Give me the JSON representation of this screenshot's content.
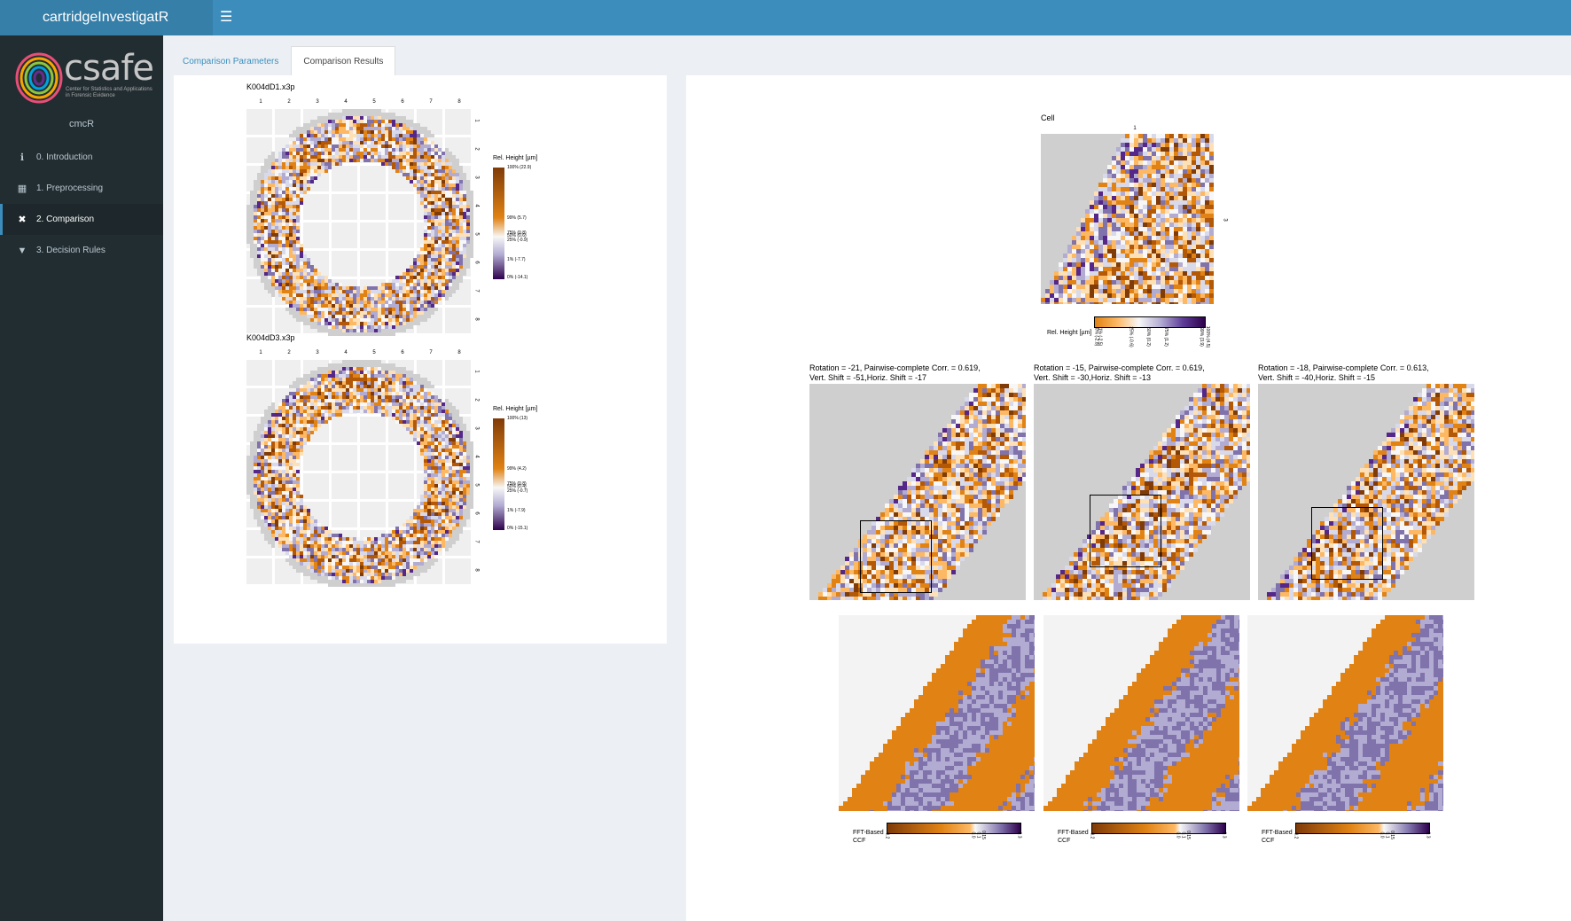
{
  "app": {
    "title": "cartridgeInvestigatR"
  },
  "topbar": {
    "toggle_icon": "hamburger-icon"
  },
  "sidebar": {
    "logo_text": "csafe",
    "logo_subtitle": "Center for Statistics and Applications in Forensic Evidence",
    "user": "cmcR",
    "items": [
      {
        "icon": "info-icon",
        "glyph": "ℹ",
        "label": "0. Introduction"
      },
      {
        "icon": "table-icon",
        "glyph": "▦",
        "label": "1. Preprocessing"
      },
      {
        "icon": "compare-icon",
        "glyph": "✖",
        "label": "2. Comparison"
      },
      {
        "icon": "filter-icon",
        "glyph": "▼",
        "label": "3. Decision Rules"
      }
    ],
    "active_index": 2
  },
  "tabs": [
    {
      "label": "Comparison Parameters"
    },
    {
      "label": "Comparison Results"
    }
  ],
  "active_tab": 1,
  "left_panel": {
    "plots": [
      {
        "title": "K004dD1.x3p",
        "col_labels": [
          "1",
          "2",
          "3",
          "4",
          "5",
          "6",
          "7",
          "8"
        ],
        "row_labels": [
          "1",
          "2",
          "3",
          "4",
          "5",
          "6",
          "7",
          "8"
        ],
        "legend_title": "Rel. Height [µm]",
        "legend_ticks": [
          "100% (22.9)",
          "99% (5.7)",
          "75% (0.8)",
          "50% (0.6)",
          "25% (-0.9)",
          "1% (-7.7)",
          "0% (-14.1)"
        ]
      },
      {
        "title": "K004dD3.x3p",
        "col_labels": [
          "1",
          "2",
          "3",
          "4",
          "5",
          "6",
          "7",
          "8"
        ],
        "row_labels": [
          "1",
          "2",
          "3",
          "4",
          "5",
          "6",
          "7",
          "8"
        ],
        "legend_title": "Rel. Height [µm]",
        "legend_ticks": [
          "100% (13)",
          "99% (4.2)",
          "75% (0.8)",
          "50% (0.4)",
          "25% (-0.7)",
          "1% (-7.9)",
          "0% (-15.1)"
        ]
      }
    ]
  },
  "right_panel": {
    "cell": {
      "title": "Cell",
      "col_label": "1",
      "row_label": "3",
      "legend_title": "Rel. Height [µm]",
      "legend_ticks": [
        "0% (-2.8)",
        "1% (-2.5)",
        "25% (-0.6)",
        "50% (0.2)",
        "75% (1.2)",
        "99% (3.9)",
        "100% (4.5)"
      ]
    },
    "comparisons": [
      {
        "line1": "Rotation = -21, Pairwise-complete Corr. = 0.619,",
        "line2": "Vert. Shift = -51,Horiz. Shift = -17"
      },
      {
        "line1": "Rotation = -15, Pairwise-complete Corr. = 0.619,",
        "line2": "Vert. Shift = -30,Horiz. Shift = -13"
      },
      {
        "line1": "Rotation = -18, Pairwise-complete Corr. = 0.613,",
        "line2": "Vert. Shift = -40,Horiz. Shift = -15"
      }
    ],
    "ccf_legend": {
      "title_line1": "FFT-Based",
      "title_line2": "CCF",
      "ticks": [
        "-0.2",
        "0.0",
        "0.1",
        "0.15",
        "0.3"
      ]
    }
  },
  "colors": {
    "topbar": "#3c8dbc",
    "brand": "#367fa9",
    "sidebar": "#222d32",
    "orange": "#e08214",
    "purple": "#5e3c99",
    "dark_orange": "#7f3b08",
    "dark_purple": "#2d004b",
    "missing": "#cfcfcf"
  }
}
